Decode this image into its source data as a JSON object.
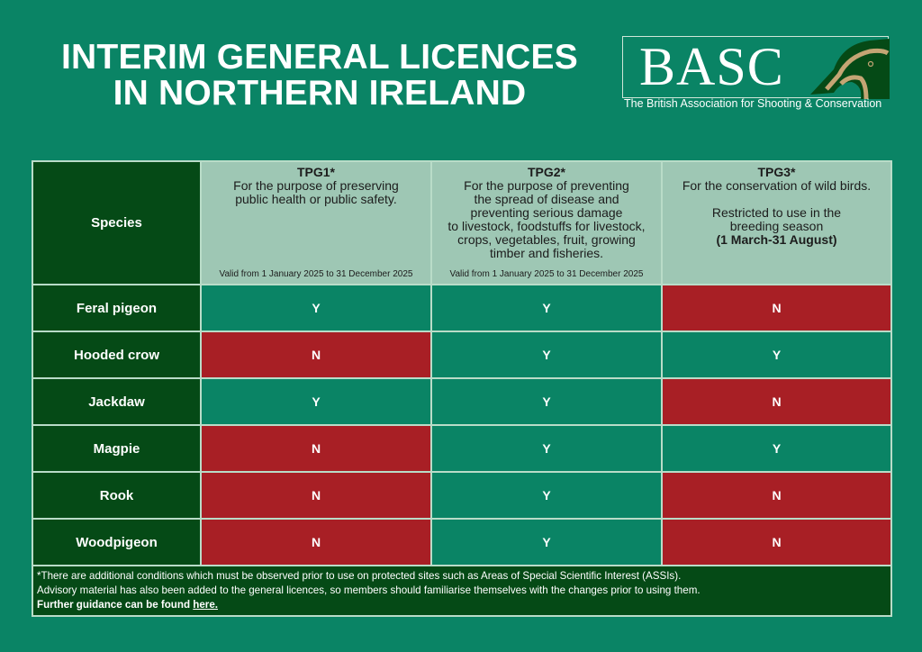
{
  "title": {
    "line1": "INTERIM GENERAL LICENCES",
    "line2": "IN NORTHERN IRELAND"
  },
  "logo": {
    "text": "BASC",
    "subtitle": "The British Association for Shooting & Conservation",
    "icon": "dog-head-icon",
    "colors": {
      "dark": "#054a16",
      "tan": "#c4a574"
    }
  },
  "table": {
    "species_header": "Species",
    "columns": [
      {
        "code": "TPG1*",
        "lines": [
          "For the purpose of preserving",
          "public health or public safety."
        ],
        "valid": "Valid from 1 January 2025 to 31 December 2025"
      },
      {
        "code": "TPG2*",
        "lines": [
          "For the purpose of preventing",
          "the spread of disease and",
          "preventing serious damage",
          "to livestock, foodstuffs for livestock,",
          "crops, vegetables, fruit, growing",
          "timber and fisheries."
        ],
        "valid": "Valid from 1 January 2025 to 31 December 2025"
      },
      {
        "code": "TPG3*",
        "lines": [
          "For the conservation of wild birds.",
          "",
          "Restricted to use in the",
          "breeding season"
        ],
        "bold_line": "(1 March-31 August)",
        "valid": ""
      }
    ],
    "rows": [
      {
        "species": "Feral pigeon",
        "values": [
          "Y",
          "Y",
          "N"
        ]
      },
      {
        "species": "Hooded crow",
        "values": [
          "N",
          "Y",
          "Y"
        ]
      },
      {
        "species": "Jackdaw",
        "values": [
          "Y",
          "Y",
          "N"
        ]
      },
      {
        "species": "Magpie",
        "values": [
          "N",
          "Y",
          "Y"
        ]
      },
      {
        "species": "Rook",
        "values": [
          "N",
          "Y",
          "N"
        ]
      },
      {
        "species": "Woodpigeon",
        "values": [
          "N",
          "Y",
          "N"
        ]
      }
    ],
    "footer": {
      "line1": "*There are additional conditions which must be observed prior to use on protected sites such as Areas of Special Scientific Interest (ASSIs).",
      "line2": "Advisory material has also been added to the general licences, so members should familiarise themselves with the changes prior to using them.",
      "line3_prefix": "Further guidance can be found ",
      "link": "here."
    }
  },
  "colors": {
    "background": "#0a8465",
    "dark_green": "#054a16",
    "header_bg": "#9ec7b4",
    "yes": "#0a8465",
    "no": "#a81f25",
    "border": "#b9dcc8"
  }
}
